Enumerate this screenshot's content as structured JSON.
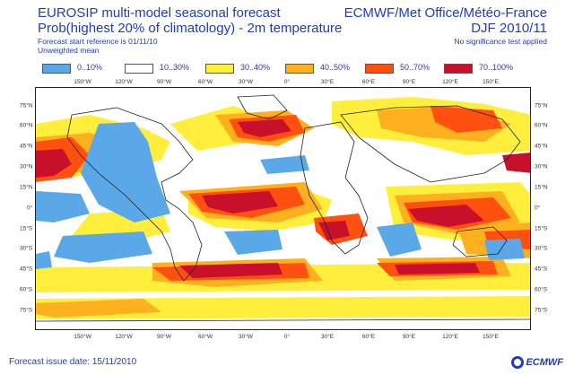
{
  "header": {
    "title_line1": "EUROSIP multi-model seasonal forecast",
    "title_line2": "Prob(highest 20% of climatology) - 2m temperature",
    "start_reference": "Forecast start reference is 01/11/10",
    "weighting": "Unweighted mean",
    "organizations": "ECMWF/Met Office/Météo-France",
    "season": "DJF 2010/11",
    "significance_note": "No significance test applied"
  },
  "legend": [
    {
      "label": "0..10%",
      "color": "#5aa8e8"
    },
    {
      "label": "10..30%",
      "color": "#ffffff"
    },
    {
      "label": "30..40%",
      "color": "#ffef3c"
    },
    {
      "label": "40..50%",
      "color": "#ffb01e"
    },
    {
      "label": "50..70%",
      "color": "#ff5010"
    },
    {
      "label": "70..100%",
      "color": "#c8102a"
    }
  ],
  "lon_labels": [
    "150°W",
    "120°W",
    "90°W",
    "60°W",
    "30°W",
    "0°",
    "30°E",
    "60°E",
    "90°E",
    "120°E",
    "150°E"
  ],
  "lat_labels": [
    "75°N",
    "60°N",
    "45°N",
    "30°N",
    "15°N",
    "0°",
    "15°S",
    "30°S",
    "45°S",
    "60°S",
    "75°S"
  ],
  "footer": {
    "issue_date": "Forecast issue date: 15/11/2010",
    "logo_text": "ECMWF"
  }
}
